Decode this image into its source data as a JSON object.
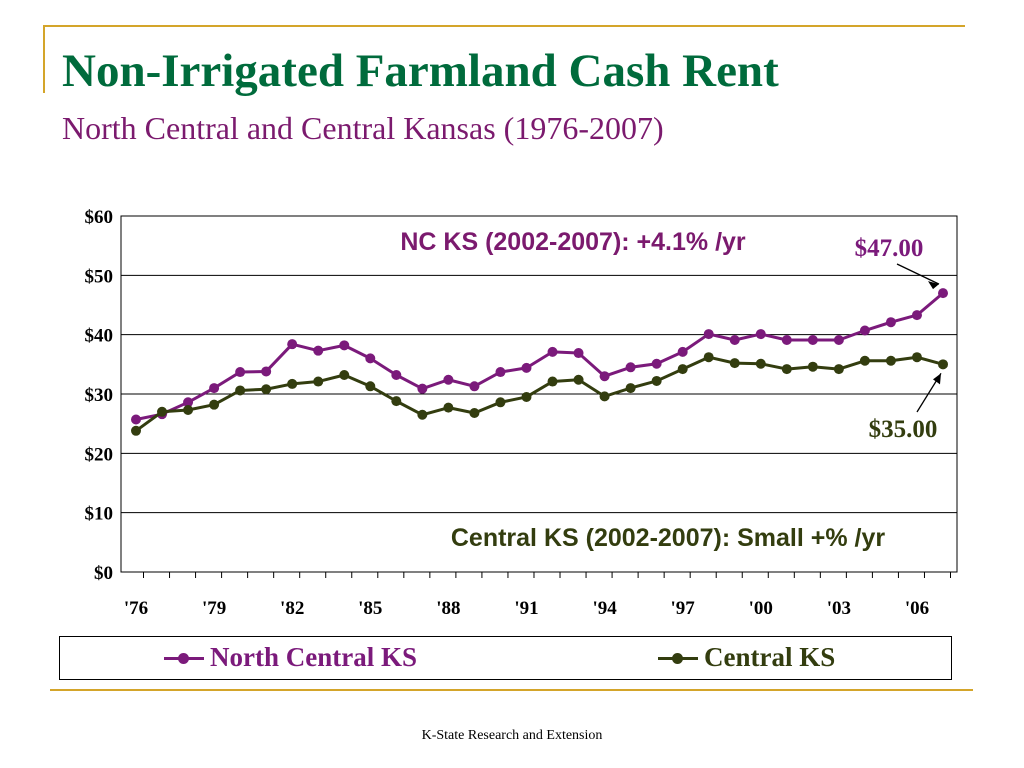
{
  "slide": {
    "title": "Non-Irrigated Farmland Cash Rent",
    "subtitle": "North Central and Central Kansas (1976-2007)",
    "footer": "K-State Research and Extension"
  },
  "colors": {
    "accent_line": "#d4a52a",
    "title": "#006b3c",
    "subtitle": "#7b1a6e"
  },
  "chart_data": {
    "type": "line",
    "xlabel": "",
    "ylabel": "",
    "ylim": [
      0,
      60
    ],
    "y_ticks": [
      0,
      10,
      20,
      30,
      40,
      50,
      60
    ],
    "y_tick_labels": [
      "$0",
      "$10",
      "$20",
      "$30",
      "$40",
      "$50",
      "$60"
    ],
    "x": [
      1976,
      1977,
      1978,
      1979,
      1980,
      1981,
      1982,
      1983,
      1984,
      1985,
      1986,
      1987,
      1988,
      1989,
      1990,
      1991,
      1992,
      1993,
      1994,
      1995,
      1996,
      1997,
      1998,
      1999,
      2000,
      2001,
      2002,
      2003,
      2004,
      2005,
      2006,
      2007
    ],
    "x_tick_labels": [
      {
        "x": 1976,
        "label": "'76"
      },
      {
        "x": 1979,
        "label": "'79"
      },
      {
        "x": 1982,
        "label": "'82"
      },
      {
        "x": 1985,
        "label": "'85"
      },
      {
        "x": 1988,
        "label": "'88"
      },
      {
        "x": 1991,
        "label": "'91"
      },
      {
        "x": 1994,
        "label": "'94"
      },
      {
        "x": 1997,
        "label": "'97"
      },
      {
        "x": 2000,
        "label": "'00"
      },
      {
        "x": 2003,
        "label": "'03"
      },
      {
        "x": 2006,
        "label": "'06"
      }
    ],
    "grid": "horizontal",
    "legend_position": "bottom",
    "series": [
      {
        "name": "North Central KS",
        "color": "#7b1a7b",
        "values": [
          25.7,
          26.6,
          28.6,
          31.0,
          33.7,
          33.8,
          38.4,
          37.3,
          38.2,
          36.0,
          33.2,
          30.9,
          32.4,
          31.3,
          33.7,
          34.4,
          37.1,
          36.9,
          33.0,
          34.5,
          35.1,
          37.1,
          40.1,
          39.1,
          40.1,
          39.1,
          39.1,
          39.1,
          40.7,
          42.1,
          43.3,
          47.0
        ]
      },
      {
        "name": "Central KS",
        "color": "#333d0f",
        "values": [
          23.8,
          27.0,
          27.3,
          28.2,
          30.6,
          30.8,
          31.7,
          32.1,
          33.2,
          31.3,
          28.8,
          26.5,
          27.7,
          26.8,
          28.6,
          29.5,
          32.1,
          32.4,
          29.6,
          31.0,
          32.2,
          34.2,
          36.2,
          35.2,
          35.1,
          34.2,
          34.6,
          34.2,
          35.6,
          35.6,
          36.2,
          35.0
        ]
      }
    ],
    "annotations": {
      "nc_growth": "NC KS (2002-2007): +4.1% /yr",
      "central_growth": "Central KS (2002-2007): Small +% /yr",
      "nc_last_value": "$47.00",
      "central_last_value": "$35.00"
    }
  }
}
